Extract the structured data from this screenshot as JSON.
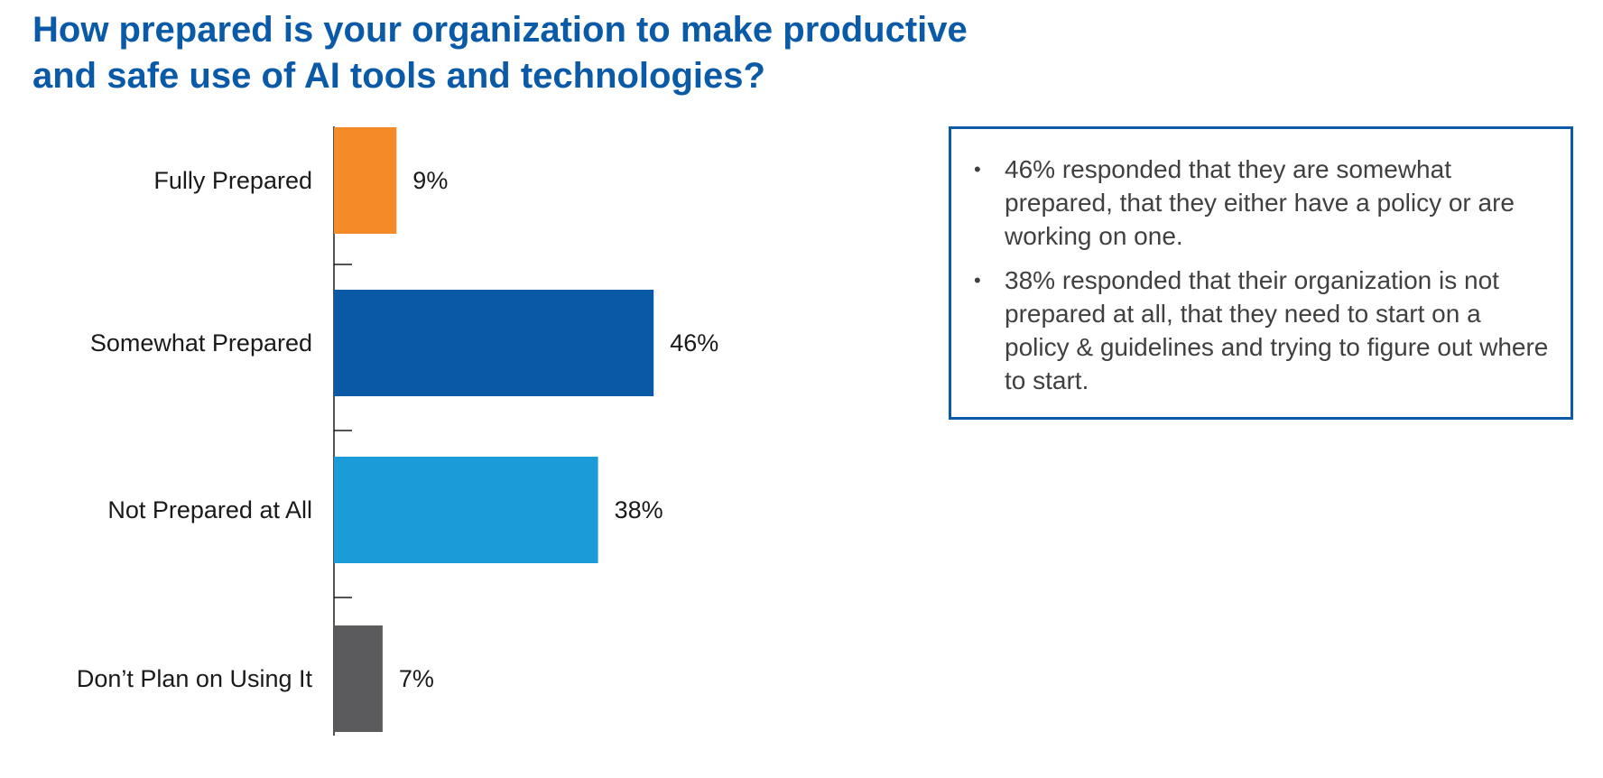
{
  "chart_data": {
    "type": "bar",
    "orientation": "horizontal",
    "title": "How prepared is your organization to make productive and safe use of AI tools and technologies?",
    "title_lines": [
      "How prepared is your organization to make productive",
      "and safe use of AI tools and technologies?"
    ],
    "categories": [
      "Fully Prepared",
      "Somewhat Prepared",
      "Not Prepared at All",
      "Don’t Plan on Using It"
    ],
    "values": [
      9,
      46,
      38,
      7
    ],
    "value_labels": [
      "9%",
      "46%",
      "38%",
      "7%"
    ],
    "colors": [
      "#f58b26",
      "#0959a6",
      "#1b9cd8",
      "#5b5b5d"
    ],
    "xlim": [
      0,
      100
    ],
    "grid": false,
    "legend": "none"
  },
  "callout": {
    "bullet": "•",
    "items": [
      "46% responded that they are somewhat prepared, that they either have a policy or are working on one.",
      "38% responded that their organization is not prepared at all, that they need to start on a policy & guidelines and trying to figure out where to start."
    ]
  },
  "colors": {
    "title": "#0a5aa8",
    "callout_border": "#0a5aa8"
  }
}
